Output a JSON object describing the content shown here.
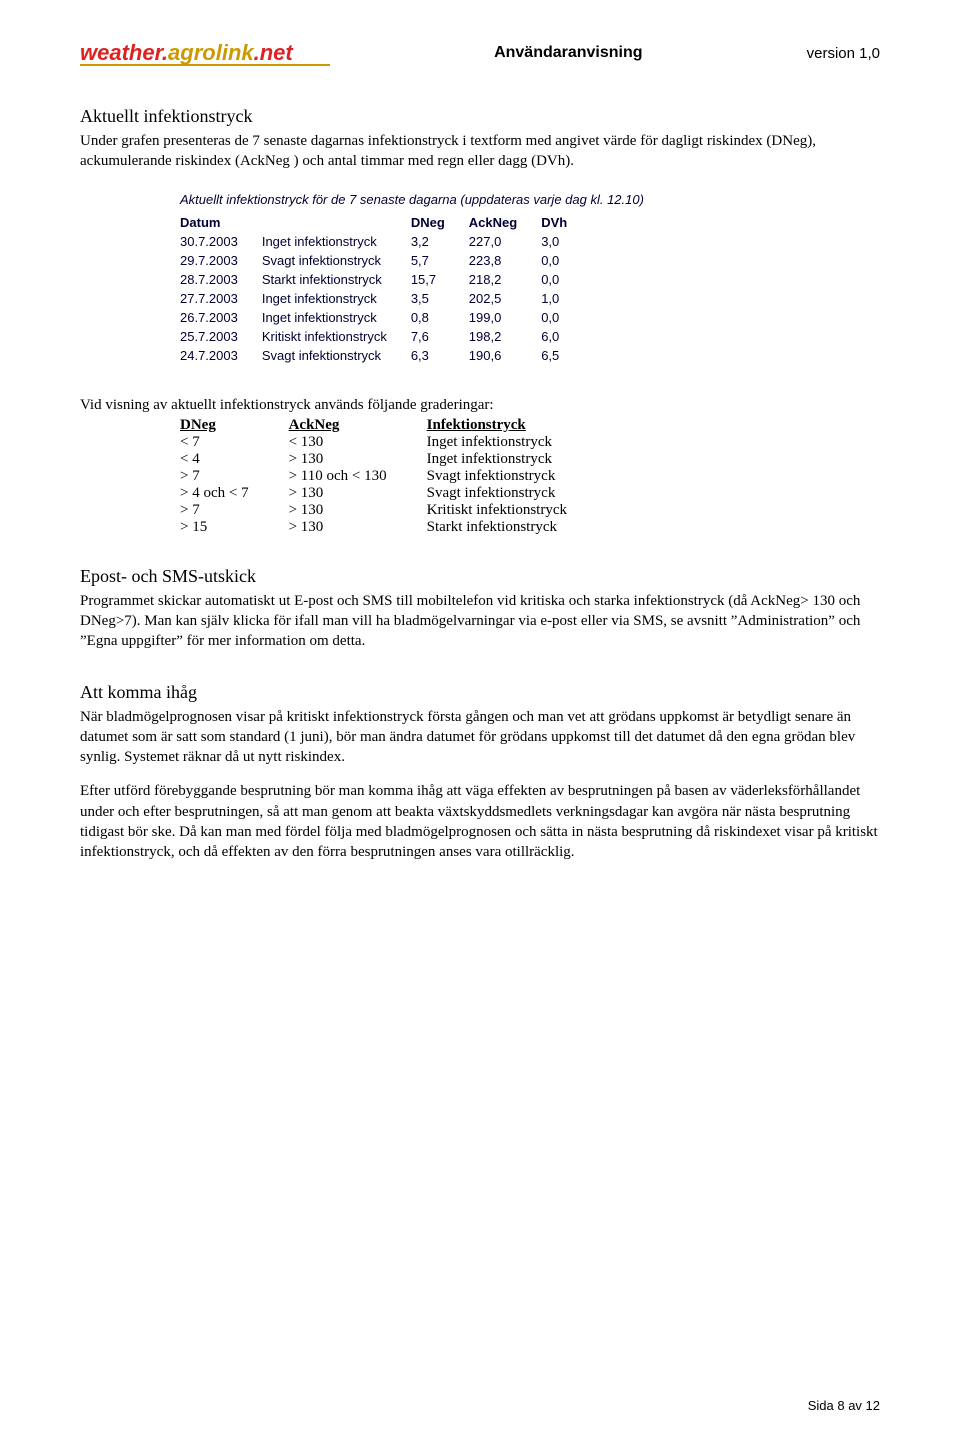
{
  "header": {
    "logo_part1": "weather.",
    "logo_part2": "agrolink",
    "logo_part3": ".net",
    "center": "Användaranvisning",
    "right": "version 1,0"
  },
  "section1": {
    "title": "Aktuellt infektionstryck",
    "body": "Under grafen presenteras de 7 senaste dagarnas infektionstryck i textform med angivet värde för dagligt riskindex (DNeg), ackumulerande riskindex (AckNeg ) och antal timmar med regn eller dagg (DVh)."
  },
  "screenshot_table": {
    "caption": "Aktuellt infektionstryck för de 7 senaste dagarna (uppdateras varje dag kl. 12.10)",
    "columns": [
      "Datum",
      "",
      "DNeg",
      "AckNeg",
      "DVh"
    ],
    "rows": [
      [
        "30.7.2003",
        "Inget infektionstryck",
        "3,2",
        "227,0",
        "3,0"
      ],
      [
        "29.7.2003",
        "Svagt infektionstryck",
        "5,7",
        "223,8",
        "0,0"
      ],
      [
        "28.7.2003",
        "Starkt infektionstryck",
        "15,7",
        "218,2",
        "0,0"
      ],
      [
        "27.7.2003",
        "Inget infektionstryck",
        "3,5",
        "202,5",
        "1,0"
      ],
      [
        "26.7.2003",
        "Inget infektionstryck",
        "0,8",
        "199,0",
        "0,0"
      ],
      [
        "25.7.2003",
        "Kritiskt infektionstryck",
        "7,6",
        "198,2",
        "6,0"
      ],
      [
        "24.7.2003",
        "Svagt infektionstryck",
        "6,3",
        "190,6",
        "6,5"
      ]
    ]
  },
  "grading": {
    "intro": "Vid visning av aktuellt infektionstryck används följande graderingar:",
    "columns": [
      "DNeg",
      "AckNeg",
      "Infektionstryck"
    ],
    "rows": [
      [
        "< 7",
        "< 130",
        "Inget infektionstryck"
      ],
      [
        "< 4",
        "> 130",
        "Inget infektionstryck"
      ],
      [
        "> 7",
        "> 110 och < 130",
        "Svagt infektionstryck"
      ],
      [
        "> 4 och < 7",
        "> 130",
        "Svagt infektionstryck"
      ],
      [
        "> 7",
        "> 130",
        "Kritiskt infektionstryck"
      ],
      [
        "> 15",
        "> 130",
        "Starkt infektionstryck"
      ]
    ]
  },
  "section2": {
    "title": "Epost- och SMS-utskick",
    "body": "Programmet skickar automatiskt ut E-post och SMS till mobiltelefon vid kritiska och starka infektionstryck (då AckNeg> 130 och DNeg>7). Man kan själv klicka för ifall man vill ha bladmögelvarningar via e-post eller via SMS, se avsnitt ”Administration” och ”Egna uppgifter” för mer information om detta."
  },
  "section3": {
    "title": "Att komma ihåg",
    "body1": "När bladmögelprognosen visar på kritiskt infektionstryck första gången och man vet att grödans uppkomst är betydligt senare än datumet som är satt som standard (1 juni), bör man ändra datumet för grödans uppkomst till det datumet då den egna grödan blev synlig. Systemet räknar då ut nytt riskindex.",
    "body2": "Efter utförd förebyggande besprutning bör man komma ihåg att väga effekten av besprutningen på basen av väderleksförhållandet under och efter besprutningen, så att man genom att beakta växtskyddsmedlets verkningsdagar kan avgöra när nästa besprutning tidigast bör ske. Då kan man med fördel följa med bladmögelprognosen och sätta in nästa besprutning då riskindexet visar på kritiskt infektionstryck, och då effekten av den förra besprutningen anses vara otillräcklig."
  },
  "footer": "Sida 8 av 12"
}
